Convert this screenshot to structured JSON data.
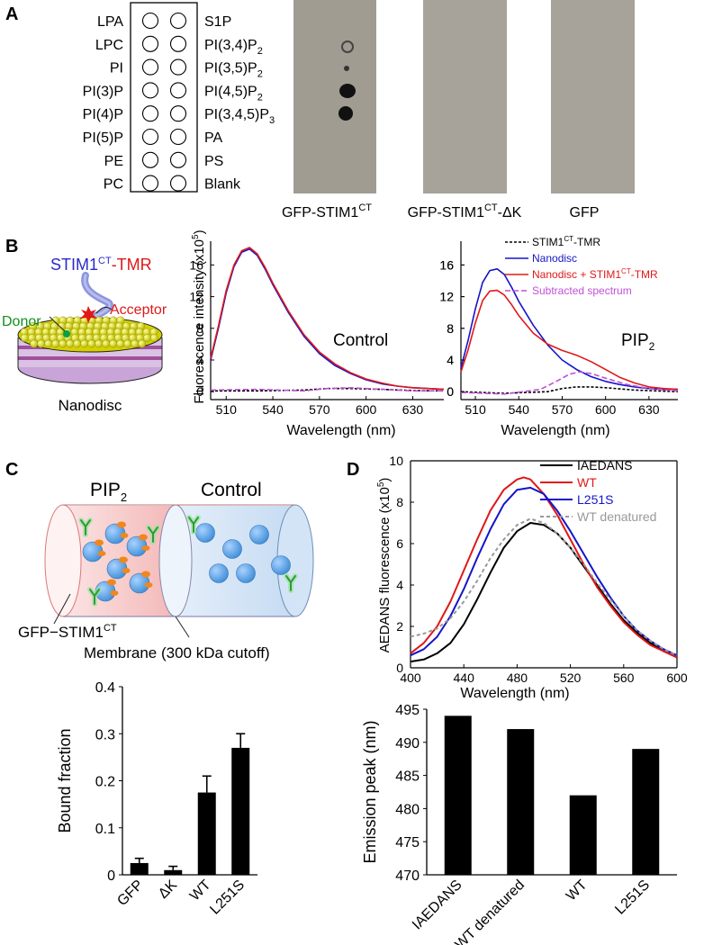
{
  "panels": {
    "a": "A",
    "b": "B",
    "c": "C",
    "d": "D"
  },
  "panelA": {
    "left_lipids": [
      "LPA",
      "LPC",
      "PI",
      "PI(3)P",
      "PI(4)P",
      "PI(5)P",
      "PE",
      "PC"
    ],
    "right_lipids": [
      {
        "base": "S1P",
        "sub": ""
      },
      {
        "base": "PI(3,4)P",
        "sub": "2"
      },
      {
        "base": "PI(3,5)P",
        "sub": "2"
      },
      {
        "base": "PI(4,5)P",
        "sub": "2"
      },
      {
        "base": "PI(3,4,5)P",
        "sub": "3"
      },
      {
        "base": "PA",
        "sub": ""
      },
      {
        "base": "PS",
        "sub": ""
      },
      {
        "base": "Blank",
        "sub": ""
      }
    ],
    "strip_labels": [
      {
        "base": "GFP-STIM1",
        "sup": "CT",
        "suffix": ""
      },
      {
        "base": "GFP-STIM1",
        "sup": "CT",
        "suffix": "-ΔK"
      },
      {
        "base": "GFP",
        "sup": "",
        "suffix": ""
      }
    ]
  },
  "panelB": {
    "probe_a": "STIM1",
    "probe_sup": "CT",
    "probe_b": "-TMR",
    "donor": "Donor",
    "acceptor": "Acceptor",
    "nanodisc": "Nanodisc",
    "ylabel": "Fluorescence intensity (x10",
    "ylabel_sup": "5",
    "ylabel_end": ")",
    "xlabel": "Wavelength (nm)",
    "control_label": "Control",
    "pip2_label": "PIP",
    "pip2_sub": "2",
    "legend": [
      {
        "text": "STIM1",
        "sup": "CT",
        "suffix": "-TMR",
        "color": "#000000",
        "dash": "3,2"
      },
      {
        "text": "Nanodisc",
        "sup": "",
        "suffix": "",
        "color": "#1515c8",
        "dash": ""
      },
      {
        "text": "Nanodisc + STIM1",
        "sup": "CT",
        "suffix": "-TMR",
        "color": "#e01818",
        "dash": ""
      },
      {
        "text": "Subtracted spectrum",
        "sup": "",
        "suffix": "",
        "color": "#c050d8",
        "dash": "6,3"
      }
    ]
  },
  "panelC": {
    "pip2": "PIP",
    "pip2_sub": "2",
    "control": "Control",
    "gfp_label": "GFP−STIM1",
    "gfp_sup": "CT",
    "membrane": "Membrane (300 kDa cutoff)"
  },
  "panelD": {
    "ylabel": "AEDANS fluorescence (x10",
    "ylabel_sup": "5",
    "ylabel_end": ")",
    "xlabel": "Wavelength (nm)",
    "legend": [
      {
        "label": "IAEDANS",
        "color": "#000000",
        "dash": ""
      },
      {
        "label": "WT",
        "color": "#e01818",
        "dash": ""
      },
      {
        "label": "L251S",
        "color": "#1515c8",
        "dash": ""
      },
      {
        "label": "WT denatured",
        "color": "#999999",
        "dash": "4,3"
      }
    ]
  },
  "chart_data": [
    {
      "type": "line",
      "title": "Control",
      "xlabel": "Wavelength (nm)",
      "ylabel": "Fluorescence intensity (x10^5)",
      "xlim": [
        500,
        650
      ],
      "ylim": [
        -1,
        19
      ],
      "xticks": [
        510,
        540,
        570,
        600,
        630
      ],
      "yticks": [
        0,
        4,
        8,
        12,
        16
      ],
      "series": [
        {
          "name": "Nanodisc",
          "color": "#1515c8",
          "x": [
            500,
            505,
            510,
            515,
            520,
            525,
            530,
            535,
            540,
            550,
            560,
            570,
            580,
            590,
            600,
            610,
            620,
            630,
            640,
            650
          ],
          "y": [
            4.0,
            8.0,
            12.5,
            15.8,
            17.6,
            18.0,
            17.2,
            15.5,
            13.5,
            10.0,
            7.0,
            4.8,
            3.3,
            2.3,
            1.5,
            1.0,
            0.7,
            0.5,
            0.4,
            0.3
          ]
        },
        {
          "name": "Nanodisc + STIM1CT-TMR",
          "color": "#e01818",
          "x": [
            500,
            505,
            510,
            515,
            520,
            525,
            530,
            535,
            540,
            550,
            560,
            570,
            580,
            590,
            600,
            610,
            620,
            630,
            640,
            650
          ],
          "y": [
            4.2,
            8.3,
            12.8,
            16.0,
            17.8,
            18.2,
            17.4,
            15.7,
            13.7,
            10.2,
            7.2,
            5.0,
            3.5,
            2.4,
            1.6,
            1.1,
            0.7,
            0.5,
            0.4,
            0.3
          ]
        },
        {
          "name": "STIM1CT-TMR",
          "color": "#000000",
          "x": [
            500,
            530,
            560,
            575,
            590,
            610,
            630,
            650
          ],
          "y": [
            0.1,
            0.1,
            0.2,
            0.4,
            0.4,
            0.3,
            0.15,
            0.1
          ]
        },
        {
          "name": "Subtracted spectrum",
          "color": "#c050d8",
          "x": [
            500,
            530,
            560,
            575,
            590,
            610,
            630,
            650
          ],
          "y": [
            0.2,
            0.3,
            0.1,
            0.4,
            0.5,
            0.3,
            0.1,
            0.1
          ]
        }
      ]
    },
    {
      "type": "line",
      "title": "PIP2",
      "xlabel": "Wavelength (nm)",
      "xlim": [
        500,
        650
      ],
      "ylim": [
        -1,
        19
      ],
      "xticks": [
        510,
        540,
        570,
        600,
        630
      ],
      "yticks": [
        0,
        4,
        8,
        12,
        16
      ],
      "series": [
        {
          "name": "Nanodisc",
          "color": "#1515c8",
          "x": [
            500,
            505,
            510,
            515,
            520,
            525,
            530,
            535,
            540,
            550,
            560,
            570,
            580,
            590,
            600,
            610,
            620,
            630,
            640,
            650
          ],
          "y": [
            3.0,
            6.5,
            10.5,
            13.8,
            15.3,
            15.5,
            14.8,
            13.2,
            11.4,
            8.4,
            5.9,
            4.0,
            2.8,
            1.9,
            1.3,
            0.9,
            0.6,
            0.4,
            0.3,
            0.3
          ]
        },
        {
          "name": "Nanodisc + STIM1CT-TMR",
          "color": "#e01818",
          "x": [
            500,
            505,
            510,
            515,
            520,
            525,
            530,
            535,
            540,
            550,
            560,
            570,
            580,
            590,
            600,
            610,
            620,
            630,
            640,
            650
          ],
          "y": [
            2.5,
            5.3,
            8.7,
            11.5,
            12.7,
            12.8,
            12.2,
            11.0,
            9.6,
            7.4,
            6.0,
            5.2,
            4.6,
            3.8,
            2.8,
            1.8,
            1.1,
            0.6,
            0.4,
            0.3
          ]
        },
        {
          "name": "STIM1CT-TMR",
          "color": "#000000",
          "x": [
            500,
            530,
            560,
            570,
            580,
            590,
            600,
            620,
            650
          ],
          "y": [
            0.0,
            -0.2,
            0.0,
            0.4,
            0.6,
            0.6,
            0.5,
            0.2,
            0.0
          ]
        },
        {
          "name": "Subtracted spectrum",
          "color": "#c050d8",
          "x": [
            500,
            530,
            555,
            565,
            575,
            582,
            590,
            600,
            615,
            630,
            650
          ],
          "y": [
            -0.1,
            -0.3,
            0.3,
            1.2,
            2.2,
            2.5,
            2.3,
            1.7,
            0.9,
            0.4,
            0.1
          ]
        }
      ]
    },
    {
      "type": "bar",
      "ylabel": "Bound fraction",
      "categories": [
        "GFP",
        "ΔK",
        "WT",
        "L251S"
      ],
      "values": [
        0.025,
        0.01,
        0.175,
        0.27
      ],
      "errors": [
        0.01,
        0.008,
        0.035,
        0.03
      ],
      "ylim": [
        0,
        0.4
      ],
      "yticks": [
        0,
        0.1,
        0.2,
        0.3,
        0.4
      ]
    },
    {
      "type": "line",
      "xlabel": "Wavelength (nm)",
      "ylabel": "AEDANS fluorescence (x10^5)",
      "xlim": [
        400,
        600
      ],
      "ylim": [
        0,
        10
      ],
      "xticks": [
        400,
        440,
        480,
        520,
        560,
        600
      ],
      "yticks": [
        0,
        2,
        4,
        6,
        8,
        10
      ],
      "series": [
        {
          "name": "IAEDANS",
          "color": "#000000",
          "x": [
            400,
            410,
            420,
            430,
            440,
            450,
            460,
            470,
            480,
            490,
            500,
            510,
            520,
            530,
            540,
            550,
            560,
            570,
            580,
            590,
            600
          ],
          "y": [
            0.3,
            0.4,
            0.7,
            1.2,
            2.1,
            3.3,
            4.6,
            5.8,
            6.6,
            7.0,
            6.9,
            6.5,
            5.8,
            4.9,
            4.0,
            3.1,
            2.3,
            1.7,
            1.2,
            0.8,
            0.5
          ]
        },
        {
          "name": "WT",
          "color": "#e01818",
          "x": [
            400,
            410,
            420,
            430,
            440,
            450,
            460,
            470,
            480,
            485,
            490,
            500,
            510,
            520,
            530,
            540,
            550,
            560,
            570,
            580,
            590,
            600
          ],
          "y": [
            0.7,
            1.2,
            2.0,
            3.2,
            4.7,
            6.2,
            7.6,
            8.6,
            9.1,
            9.2,
            9.1,
            8.4,
            7.4,
            6.2,
            5.0,
            3.9,
            3.0,
            2.2,
            1.6,
            1.1,
            0.8,
            0.5
          ]
        },
        {
          "name": "L251S",
          "color": "#1515c8",
          "x": [
            400,
            410,
            420,
            430,
            440,
            450,
            460,
            470,
            480,
            490,
            500,
            510,
            520,
            530,
            540,
            550,
            560,
            570,
            580,
            590,
            600
          ],
          "y": [
            0.6,
            0.9,
            1.5,
            2.5,
            3.8,
            5.3,
            6.7,
            7.9,
            8.6,
            8.7,
            8.4,
            7.6,
            6.6,
            5.5,
            4.4,
            3.4,
            2.5,
            1.8,
            1.3,
            0.9,
            0.6
          ]
        },
        {
          "name": "WT denatured",
          "color": "#999999",
          "x": [
            400,
            410,
            420,
            430,
            440,
            450,
            460,
            470,
            480,
            490,
            500,
            510,
            520,
            530,
            540,
            550,
            560,
            570,
            580,
            590,
            600
          ],
          "y": [
            1.5,
            1.65,
            1.9,
            2.4,
            3.2,
            4.2,
            5.3,
            6.2,
            6.9,
            7.2,
            7.0,
            6.5,
            5.8,
            5.0,
            4.1,
            3.3,
            2.5,
            1.8,
            1.3,
            0.9,
            0.6
          ]
        }
      ]
    },
    {
      "type": "bar",
      "ylabel": "Emission peak (nm)",
      "categories": [
        "IAEDANS",
        "WT denatured",
        "WT",
        "L251S"
      ],
      "values": [
        494,
        492,
        482,
        489
      ],
      "ylim": [
        470,
        495
      ],
      "yticks": [
        470,
        475,
        480,
        485,
        490,
        495
      ]
    }
  ]
}
